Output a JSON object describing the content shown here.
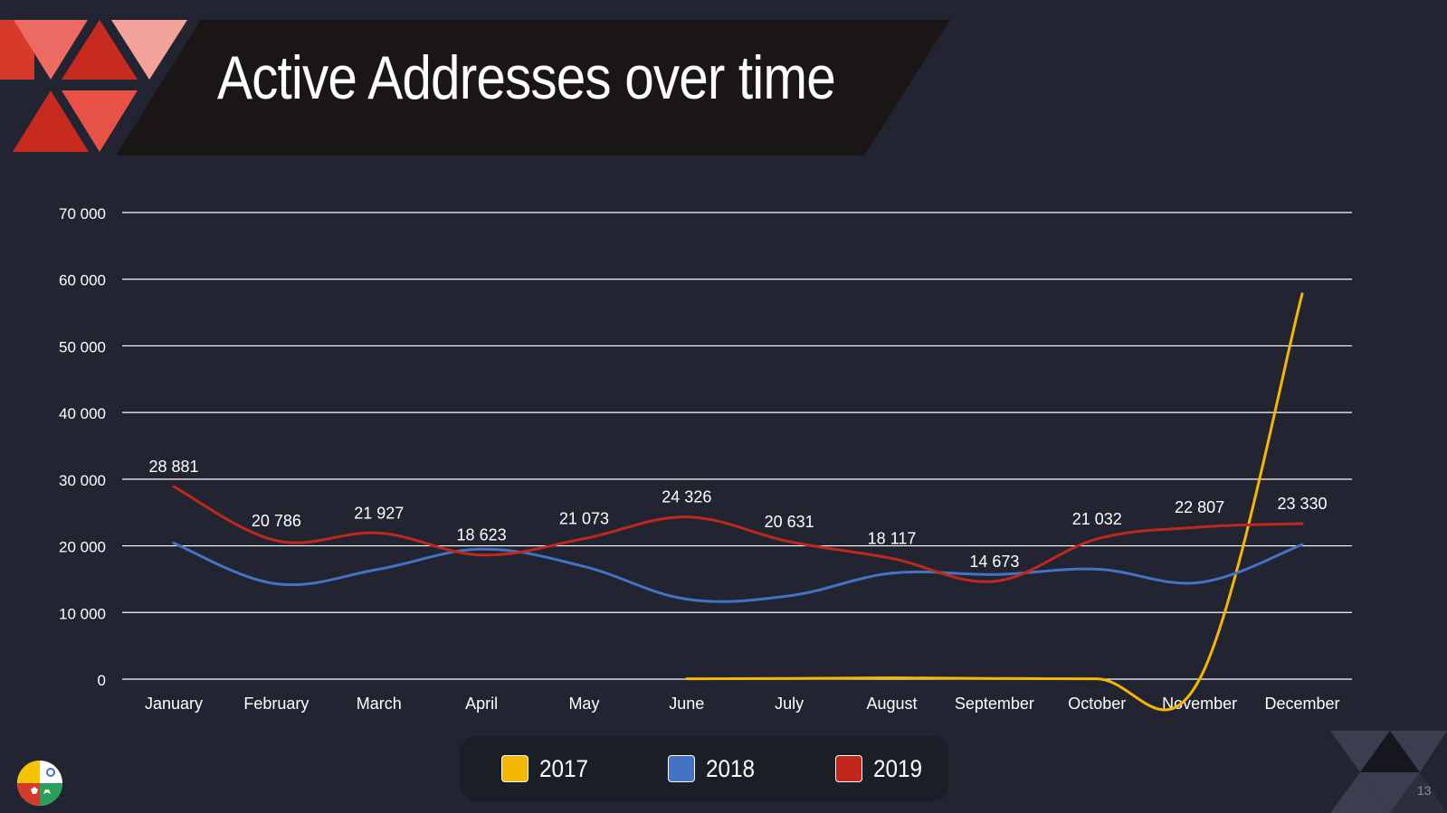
{
  "slide": {
    "title": "Active Addresses over time",
    "page_number": "13"
  },
  "colors": {
    "background": "#222431",
    "banner": "#1a1616",
    "series_2017": "#f5b800",
    "series_2018": "#4472c4",
    "series_2019": "#c0281c",
    "grid": "#ffffff",
    "text": "#ffffff"
  },
  "icons": {
    "logo": "colorful-circle-logo-icon",
    "corner": "triangle-pattern-icon",
    "header": "triangle-pattern-icon"
  },
  "chart_data": {
    "type": "line",
    "title": "",
    "xlabel": "",
    "ylabel": "",
    "categories": [
      "January",
      "February",
      "March",
      "April",
      "May",
      "June",
      "July",
      "August",
      "September",
      "October",
      "November",
      "December"
    ],
    "ylim": [
      0,
      70000
    ],
    "yticks": [
      0,
      10000,
      20000,
      30000,
      40000,
      50000,
      60000,
      70000
    ],
    "ytick_labels": [
      "0",
      "10 000",
      "20 000",
      "30 000",
      "40 000",
      "50 000",
      "60 000",
      "70 000"
    ],
    "grid": true,
    "smooth": true,
    "legend_position": "bottom-center",
    "series": [
      {
        "name": "2017",
        "color": "#f5b800",
        "values": [
          null,
          null,
          null,
          null,
          null,
          50,
          100,
          200,
          100,
          50,
          0,
          57800
        ]
      },
      {
        "name": "2018",
        "color": "#4472c4",
        "values": [
          20400,
          14300,
          16500,
          19500,
          16900,
          12000,
          12500,
          15900,
          15700,
          16500,
          14500,
          20200
        ]
      },
      {
        "name": "2019",
        "color": "#c0281c",
        "values": [
          28881,
          20786,
          21927,
          18623,
          21073,
          24326,
          20631,
          18117,
          14673,
          21032,
          22807,
          23330
        ],
        "data_labels": [
          "28 881",
          "20 786",
          "21 927",
          "18 623",
          "21 073",
          "24 326",
          "20 631",
          "18 117",
          "14 673",
          "21 032",
          "22 807",
          "23 330"
        ]
      }
    ]
  }
}
